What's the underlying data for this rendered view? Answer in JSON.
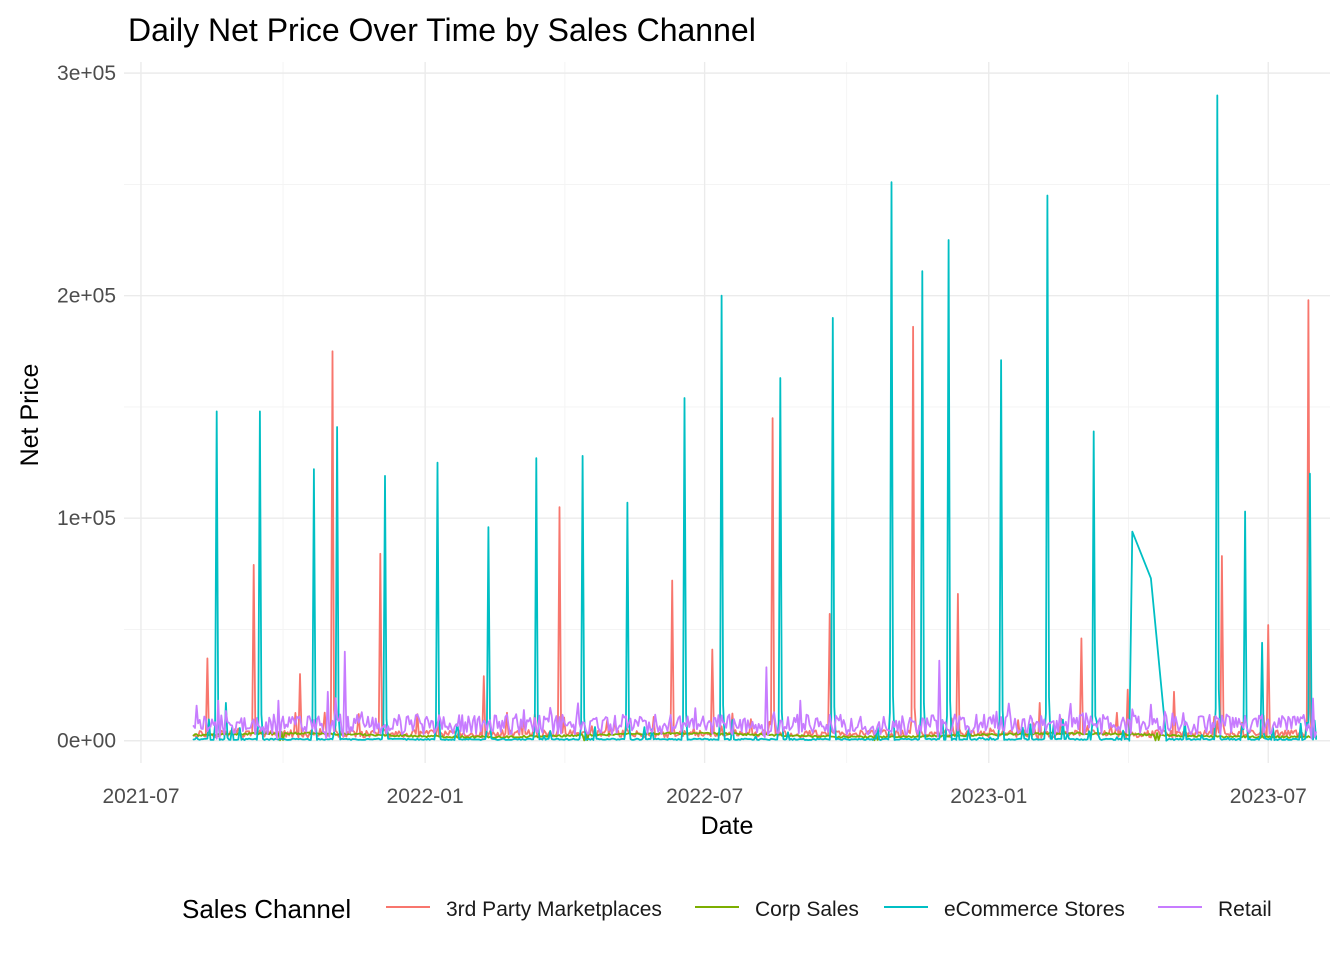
{
  "chart_data": {
    "type": "line",
    "title": "Daily Net Price Over Time by Sales Channel",
    "xlabel": "Date",
    "ylabel": "Net Price",
    "x_type": "date",
    "xlim": [
      "2021-06-20",
      "2023-08-10"
    ],
    "ylim": [
      -10000,
      305000
    ],
    "x_ticks": [
      {
        "value": "2021-07-01",
        "label": "2021-07"
      },
      {
        "value": "2022-01-01",
        "label": "2022-01"
      },
      {
        "value": "2022-07-01",
        "label": "2022-07"
      },
      {
        "value": "2023-01-01",
        "label": "2023-01"
      },
      {
        "value": "2023-07-01",
        "label": "2023-07"
      }
    ],
    "y_ticks": [
      {
        "value": 0,
        "label": "0e+00"
      },
      {
        "value": 100000,
        "label": "1e+05"
      },
      {
        "value": 200000,
        "label": "2e+05"
      },
      {
        "value": 300000,
        "label": "3e+05"
      }
    ],
    "grid": true,
    "legend": {
      "title": "Sales Channel",
      "position": "bottom"
    },
    "series": [
      {
        "name": "3rd Party Marketplaces",
        "color": "#F8766D",
        "base": 1500,
        "spikes": [
          [
            "2021-08-13",
            37000
          ],
          [
            "2021-09-12",
            79000
          ],
          [
            "2021-10-12",
            30000
          ],
          [
            "2021-11-02",
            175000
          ],
          [
            "2021-12-03",
            84000
          ],
          [
            "2022-02-08",
            29000
          ],
          [
            "2022-03-29",
            105000
          ],
          [
            "2022-06-10",
            72000
          ],
          [
            "2022-07-06",
            41000
          ],
          [
            "2022-08-14",
            145000
          ],
          [
            "2022-09-20",
            57000
          ],
          [
            "2022-11-13",
            186000
          ],
          [
            "2022-12-12",
            66000
          ],
          [
            "2023-02-03",
            17000
          ],
          [
            "2023-03-02",
            46000
          ],
          [
            "2023-04-01",
            23000
          ],
          [
            "2023-05-01",
            22000
          ],
          [
            "2023-06-01",
            83000
          ],
          [
            "2023-07-01",
            52000
          ],
          [
            "2023-07-27",
            198000
          ]
        ]
      },
      {
        "name": "Corp Sales",
        "color": "#7CAE00",
        "base": 2500,
        "spikes": [
          [
            "2021-09-30",
            4000
          ],
          [
            "2022-04-15",
            3500
          ],
          [
            "2022-10-20",
            4500
          ],
          [
            "2023-04-20",
            3500
          ]
        ]
      },
      {
        "name": "eCommerce Stores",
        "color": "#00BFC4",
        "base": 300,
        "spikes": [
          [
            "2021-08-19",
            148000
          ],
          [
            "2021-08-25",
            17000
          ],
          [
            "2021-09-16",
            148000
          ],
          [
            "2021-10-21",
            122000
          ],
          [
            "2021-11-05",
            141000
          ],
          [
            "2021-12-06",
            119000
          ],
          [
            "2022-01-09",
            125000
          ],
          [
            "2022-02-11",
            96000
          ],
          [
            "2022-03-14",
            127000
          ],
          [
            "2022-04-13",
            128000
          ],
          [
            "2022-05-12",
            107000
          ],
          [
            "2022-06-18",
            154000
          ],
          [
            "2022-07-12",
            200000
          ],
          [
            "2022-08-19",
            163000
          ],
          [
            "2022-09-22",
            190000
          ],
          [
            "2022-10-30",
            251000
          ],
          [
            "2022-11-19",
            211000
          ],
          [
            "2022-12-06",
            225000
          ],
          [
            "2023-01-09",
            171000
          ],
          [
            "2023-02-08",
            245000
          ],
          [
            "2023-03-10",
            139000
          ],
          [
            "2023-05-29",
            290000
          ],
          [
            "2023-06-16",
            103000
          ],
          [
            "2023-06-27",
            44000
          ],
          [
            "2023-07-28",
            120000
          ]
        ],
        "plateaus": [
          [
            [
              "2023-04-02",
              0
            ],
            [
              "2023-04-04",
              94000
            ],
            [
              "2023-04-16",
              73000
            ],
            [
              "2023-04-26",
              0
            ]
          ]
        ]
      },
      {
        "name": "Retail",
        "color": "#C77CFF",
        "base": 5500,
        "spikes": [
          [
            "2021-08-20",
            18000
          ],
          [
            "2021-09-28",
            18000
          ],
          [
            "2021-10-30",
            22000
          ],
          [
            "2021-11-10",
            40000
          ],
          [
            "2022-08-10",
            33000
          ],
          [
            "2022-11-30",
            36000
          ],
          [
            "2023-07-30",
            19000
          ]
        ]
      }
    ]
  }
}
